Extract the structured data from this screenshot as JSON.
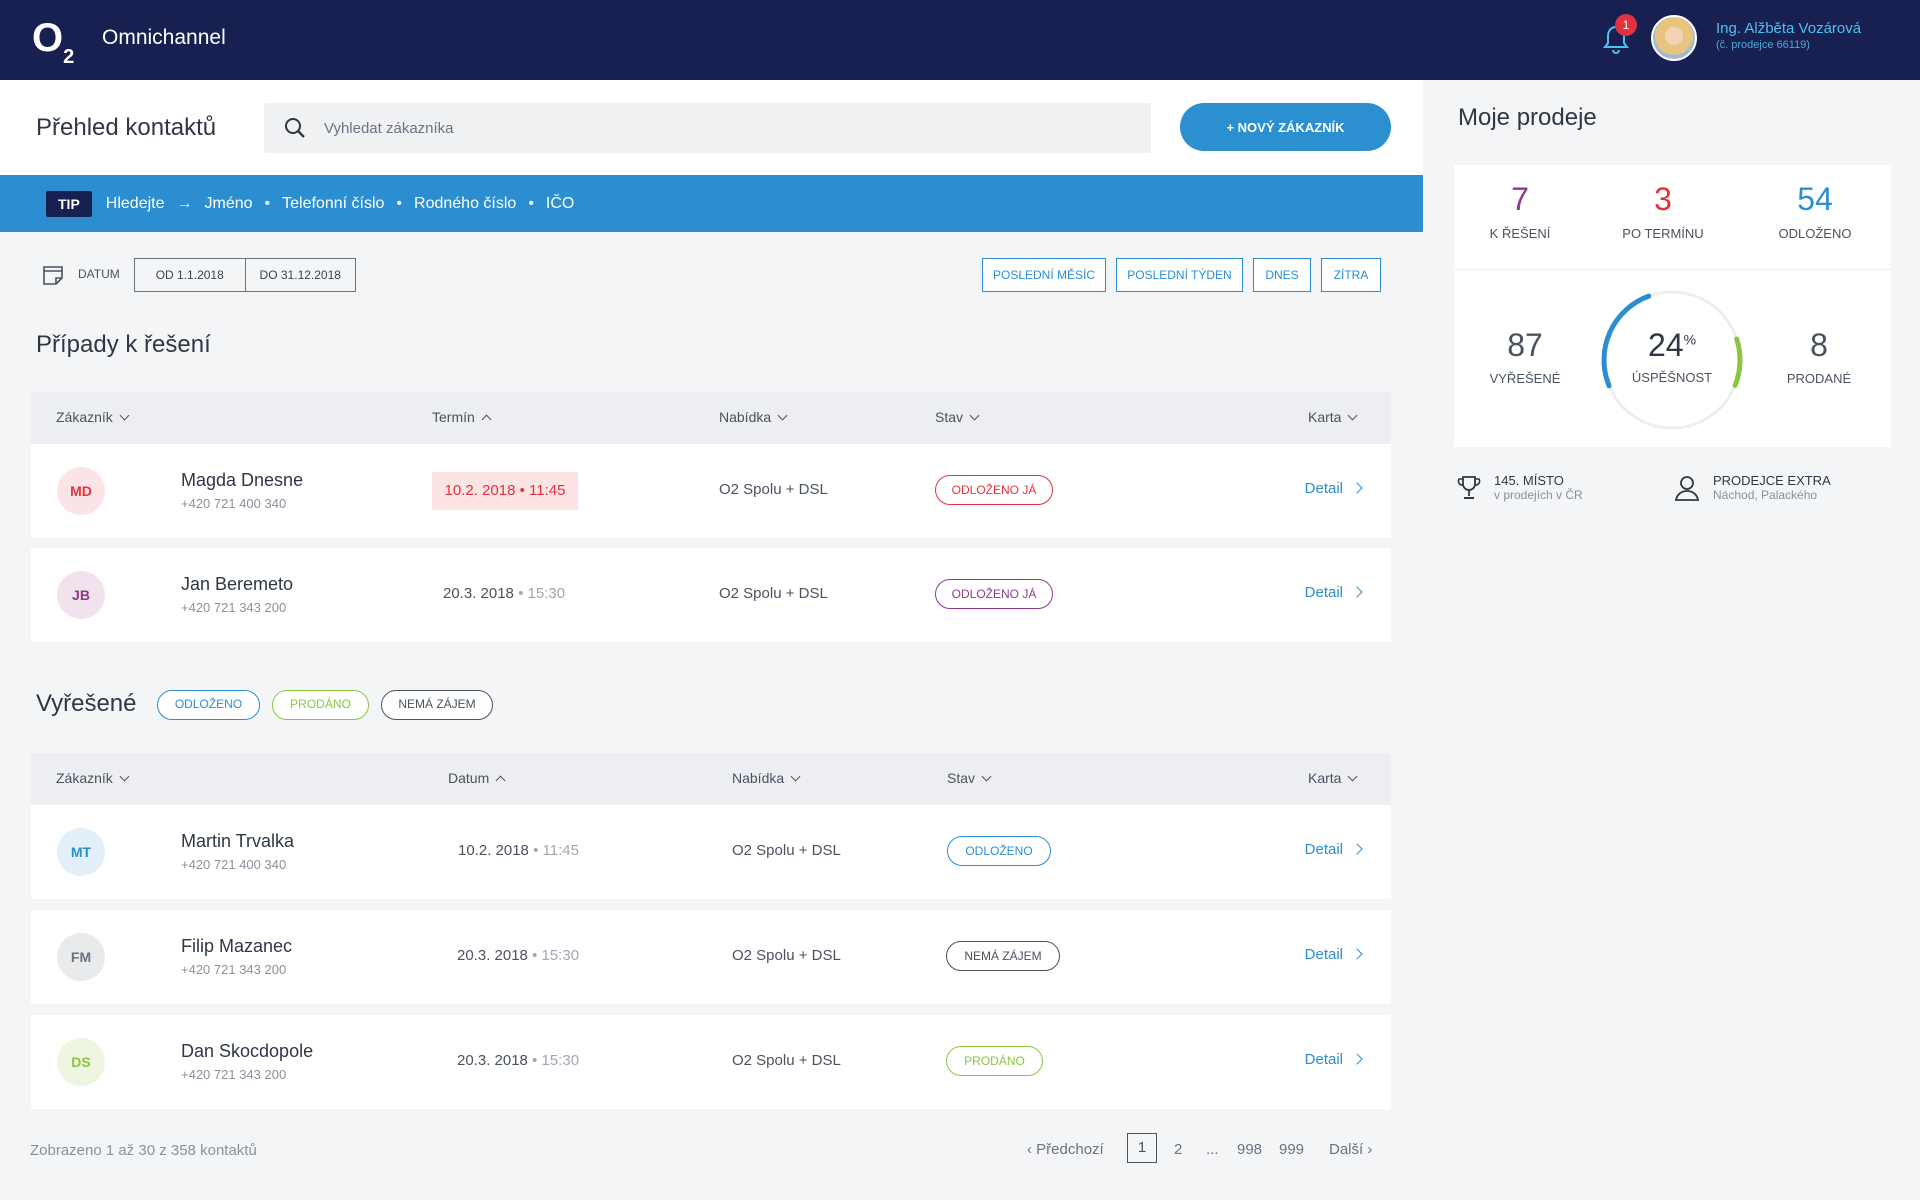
{
  "header": {
    "logo_main": "O",
    "logo_sub": "2",
    "app_name": "Omnichannel",
    "notification_count": "1",
    "user_name": "Ing. Alžběta Vozárová",
    "user_sub": "(č. prodejce 66119)"
  },
  "top": {
    "page_title": "Přehled kontaktů",
    "search_placeholder": "Vyhledat zákazníka",
    "new_customer": "+ NOVÝ ZÁKAZNÍK"
  },
  "tip": {
    "badge": "TIP",
    "lead": "Hledejte",
    "items": [
      "Jméno",
      "Telefonní číslo",
      "Rodného číslo",
      "IČO"
    ]
  },
  "filter": {
    "datum_label": "DATUM",
    "from": "OD 1.1.2018",
    "to": "DO 31.12.2018",
    "quick": [
      "POSLEDNÍ MĚSÍC",
      "POSLEDNÍ TÝDEN",
      "DNES",
      "ZÍTRA"
    ]
  },
  "pending": {
    "title": "Případy k řešení",
    "columns": [
      "Zákazník",
      "Termín",
      "Nabídka",
      "Stav",
      "Karta"
    ],
    "rows": [
      {
        "initials": "MD",
        "name": "Magda Dnesne",
        "phone": "+420 721 400 340",
        "date": "10.2. 2018 • 11:45",
        "offer": "O2 Spolu + DSL",
        "status": "ODLOŽENO JÁ",
        "detail": "Detail"
      },
      {
        "initials": "JB",
        "name": "Jan Beremeto",
        "phone": "+420 721 343 200",
        "date": "20.3. 2018",
        "time": "• 15:30",
        "offer": "O2 Spolu + DSL",
        "status": "ODLOŽENO JÁ",
        "detail": "Detail"
      }
    ]
  },
  "resolved": {
    "title": "Vyřešené",
    "filters": [
      "ODLOŽENO",
      "PRODÁNO",
      "NEMÁ ZÁJEM"
    ],
    "columns": [
      "Zákazník",
      "Datum",
      "Nabídka",
      "Stav",
      "Karta"
    ],
    "rows": [
      {
        "initials": "MT",
        "name": "Martin Trvalka",
        "phone": "+420 721 400 340",
        "date": "10.2. 2018",
        "time": "• 11:45",
        "offer": "O2 Spolu + DSL",
        "status": "ODLOŽENO",
        "detail": "Detail"
      },
      {
        "initials": "FM",
        "name": "Filip Mazanec",
        "phone": "+420 721 343 200",
        "date": "20.3. 2018",
        "time": "• 15:30",
        "offer": "O2 Spolu + DSL",
        "status": "NEMÁ ZÁJEM",
        "detail": "Detail"
      },
      {
        "initials": "DS",
        "name": "Dan Skocdopole",
        "phone": "+420 721 343 200",
        "date": "20.3. 2018",
        "time": "• 15:30",
        "offer": "O2 Spolu + DSL",
        "status": "PRODÁNO",
        "detail": "Detail"
      }
    ]
  },
  "pagination": {
    "info": "Zobrazeno 1 až 30 z 358 kontaktů",
    "prev": "‹ Předchozí",
    "pages": [
      "1",
      "2",
      "...",
      "998",
      "999"
    ],
    "next": "Další ›"
  },
  "sidebar": {
    "title": "Moje prodeje",
    "k_reseni": {
      "value": "7",
      "label": "K ŘEŠENÍ"
    },
    "po_terminu": {
      "value": "3",
      "label": "PO TERMÍNU"
    },
    "odlozeno": {
      "value": "54",
      "label": "ODLOŽENO"
    },
    "vyresene": {
      "value": "87",
      "label": "VYŘEŠENÉ"
    },
    "uspesnost": {
      "value": "24",
      "unit": "%",
      "label": "ÚSPĚŠNOST",
      "fraction": 0.24
    },
    "prodane": {
      "value": "8",
      "label": "PRODANÉ"
    },
    "rank_l1": "145. MÍSTO",
    "rank_l2": "v prodejích v ČR",
    "extra_l1": "PRODEJCE EXTRA",
    "extra_l2": "Náchod, Palackého"
  },
  "colors": {
    "brand": "#172050",
    "accent": "#2a8ed1",
    "red": "#e2323f",
    "purple": "#8e3a8c",
    "green": "#8cc63f"
  }
}
